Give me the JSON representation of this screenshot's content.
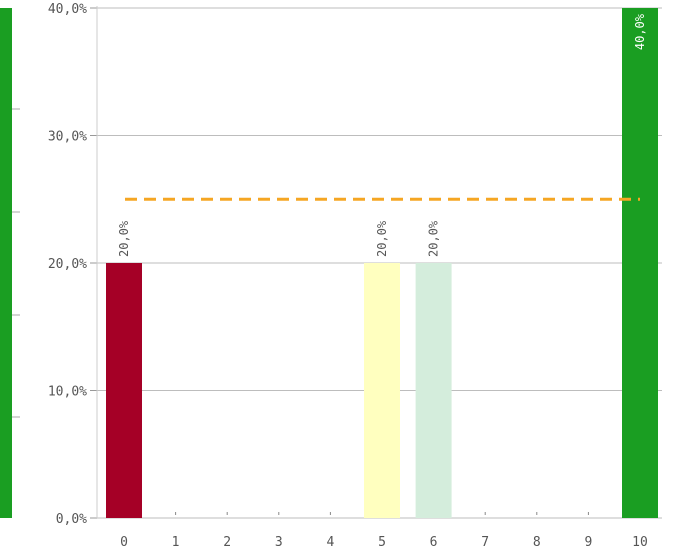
{
  "chart_data": {
    "type": "bar",
    "categories": [
      "0",
      "1",
      "2",
      "3",
      "4",
      "5",
      "6",
      "7",
      "8",
      "9",
      "10"
    ],
    "values": [
      20.0,
      0,
      0,
      0,
      0,
      20.0,
      20.0,
      0,
      0,
      0,
      40.0
    ],
    "data_labels": [
      "20,0%",
      "",
      "",
      "",
      "",
      "20,0%",
      "20,0%",
      "",
      "",
      "",
      "40,0%"
    ],
    "bar_colors": [
      "#a50026",
      "#a50026",
      "#a50026",
      "#a50026",
      "#a50026",
      "#ffffbf",
      "#d4eddc",
      "#1a9641",
      "#1a9641",
      "#1a9641",
      "#1a9e22"
    ],
    "ylim": [
      0,
      40
    ],
    "yticks": [
      0,
      10,
      20,
      30,
      40
    ],
    "ytick_labels": [
      "0,0%",
      "10,0%",
      "20,0%",
      "30,0%",
      "40,0%"
    ],
    "reference_line": {
      "value": 25.0,
      "color": "#f5a623",
      "style": "dashed"
    },
    "grid": true,
    "left_edge_bar_color": "#1a9e22",
    "title": "",
    "xlabel": "",
    "ylabel": ""
  }
}
